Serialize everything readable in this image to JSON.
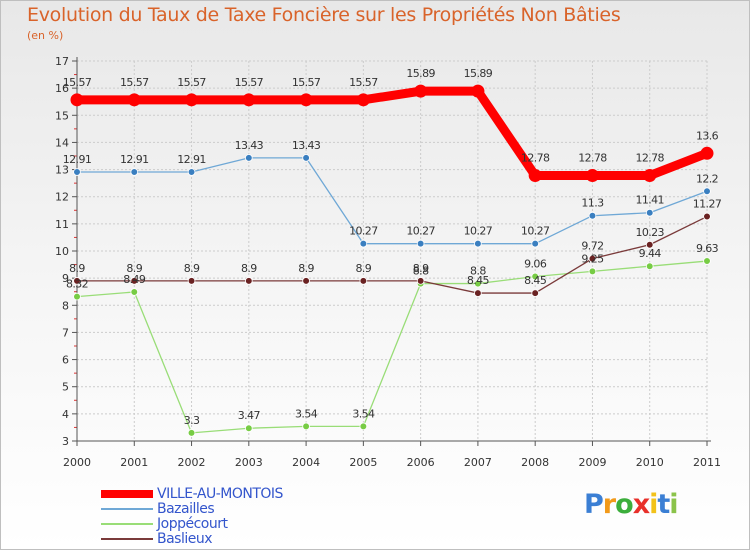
{
  "chart_data": {
    "type": "line",
    "title": "Evolution du Taux de Taxe Foncière sur les Propriétés Non Bâties",
    "unit_label": "(en %)",
    "xlabel": "",
    "ylabel": "",
    "ylim": [
      3,
      17
    ],
    "yticks": [
      3,
      4,
      5,
      6,
      7,
      8,
      9,
      10,
      11,
      12,
      13,
      14,
      15,
      16,
      17
    ],
    "categories": [
      "2000",
      "2001",
      "2002",
      "2003",
      "2004",
      "2005",
      "2006",
      "2007",
      "2008",
      "2009",
      "2010",
      "2011"
    ],
    "grid": true,
    "legend_position": "bottom-left",
    "series": [
      {
        "name": "VILLE-AU-MONTOIS",
        "color": "#ff0000",
        "emphasis": true,
        "values": [
          15.57,
          15.57,
          15.57,
          15.57,
          15.57,
          15.57,
          15.89,
          15.89,
          12.78,
          12.78,
          12.78,
          13.6
        ],
        "labels": [
          "15.57",
          "15.57",
          "15.57",
          "15.57",
          "15.57",
          "15.57",
          "15.89",
          "15.89",
          "12.78",
          "12.78",
          "12.78",
          "13.6"
        ]
      },
      {
        "name": "Bazailles",
        "color": "#6fa8d6",
        "marker": "#3a7fc0",
        "values": [
          12.91,
          12.91,
          12.91,
          13.43,
          13.43,
          10.27,
          10.27,
          10.27,
          10.27,
          11.3,
          11.41,
          12.2
        ],
        "labels": [
          "12.91",
          "12.91",
          "12.91",
          "13.43",
          "13.43",
          "10.27",
          "10.27",
          "10.27",
          "10.27",
          "11.3",
          "11.41",
          "12.2"
        ]
      },
      {
        "name": "Joppécourt",
        "color": "#99dd77",
        "marker": "#77cc44",
        "values": [
          8.32,
          8.49,
          3.3,
          3.47,
          3.54,
          3.54,
          8.8,
          8.8,
          9.06,
          9.25,
          9.44,
          9.63
        ],
        "labels": [
          "8.32",
          "8.49",
          "3.3",
          "3.47",
          "3.54",
          "3.54",
          "8.8",
          "8.8",
          "9.06",
          "9.25",
          "9.44",
          "9.63"
        ]
      },
      {
        "name": "Baslieux",
        "color": "#7a3a3a",
        "marker": "#6a2222",
        "values": [
          8.9,
          8.9,
          8.9,
          8.9,
          8.9,
          8.9,
          8.9,
          8.45,
          8.45,
          9.72,
          10.23,
          11.27
        ],
        "labels": [
          "8.9",
          "8.9",
          "8.9",
          "8.9",
          "8.9",
          "8.9",
          "8.9",
          "8.45",
          "8.45",
          "9.72",
          "10.23",
          "11.27"
        ]
      }
    ]
  },
  "brand": {
    "letters": [
      "P",
      "r",
      "o",
      "x",
      "i",
      "t",
      "i"
    ],
    "colors": [
      "#3b7fd4",
      "#f29a1a",
      "#3cae3c",
      "#e8302a",
      "#f2c21a",
      "#3b7fd4",
      "#8bc34a"
    ]
  }
}
